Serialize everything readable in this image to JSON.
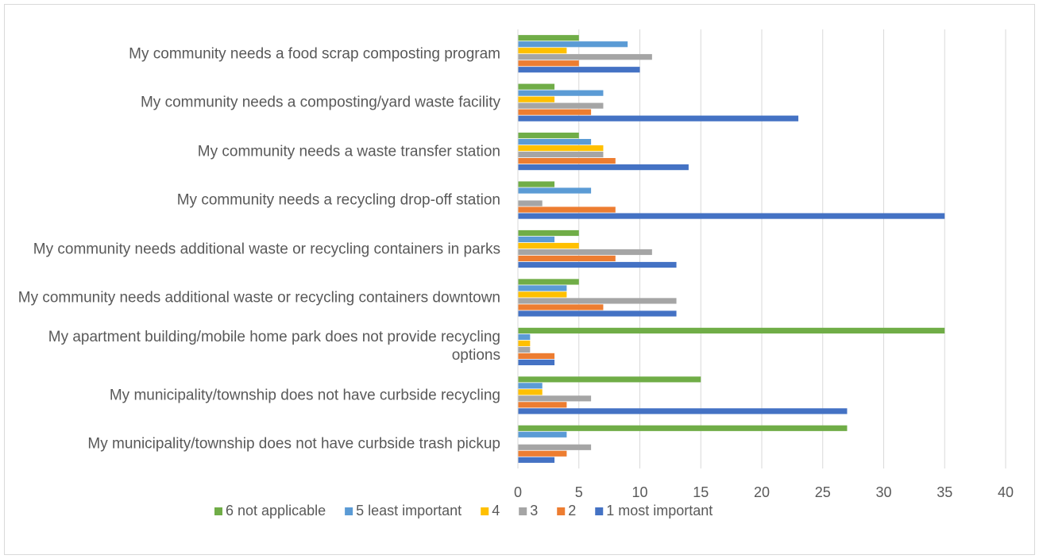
{
  "chart_data": {
    "type": "barh",
    "categories": [
      "My community needs a food scrap composting program",
      "My community needs a composting/yard waste facility",
      "My community needs a waste transfer station",
      "My community needs a recycling drop-off station",
      "My community needs additional waste or recycling containers in parks",
      "My community needs additional waste or recycling containers downtown",
      "My apartment building/mobile home park does not provide recycling options",
      "My municipality/township does not have curbside recycling",
      "My municipality/township does not have curbside trash pickup"
    ],
    "series": [
      {
        "name": "6 not applicable",
        "color": "#70ad47",
        "values": [
          5,
          3,
          5,
          3,
          5,
          5,
          35,
          15,
          27
        ]
      },
      {
        "name": "5 least important",
        "color": "#5b9bd5",
        "values": [
          9,
          7,
          6,
          6,
          3,
          4,
          1,
          2,
          4
        ]
      },
      {
        "name": "4",
        "color": "#ffc000",
        "values": [
          4,
          3,
          7,
          0,
          5,
          4,
          1,
          2,
          0
        ]
      },
      {
        "name": "3",
        "color": "#a5a5a5",
        "values": [
          11,
          7,
          7,
          2,
          11,
          13,
          1,
          6,
          6
        ]
      },
      {
        "name": "2",
        "color": "#ed7d31",
        "values": [
          5,
          6,
          8,
          8,
          8,
          7,
          3,
          4,
          4
        ]
      },
      {
        "name": "1 most important",
        "color": "#4472c4",
        "values": [
          10,
          23,
          14,
          35,
          13,
          13,
          3,
          27,
          3
        ]
      }
    ],
    "xlim": [
      0,
      40
    ],
    "xticks": [
      0,
      5,
      10,
      15,
      20,
      25,
      30,
      35,
      40
    ],
    "grid": true,
    "legend": "bottom"
  }
}
